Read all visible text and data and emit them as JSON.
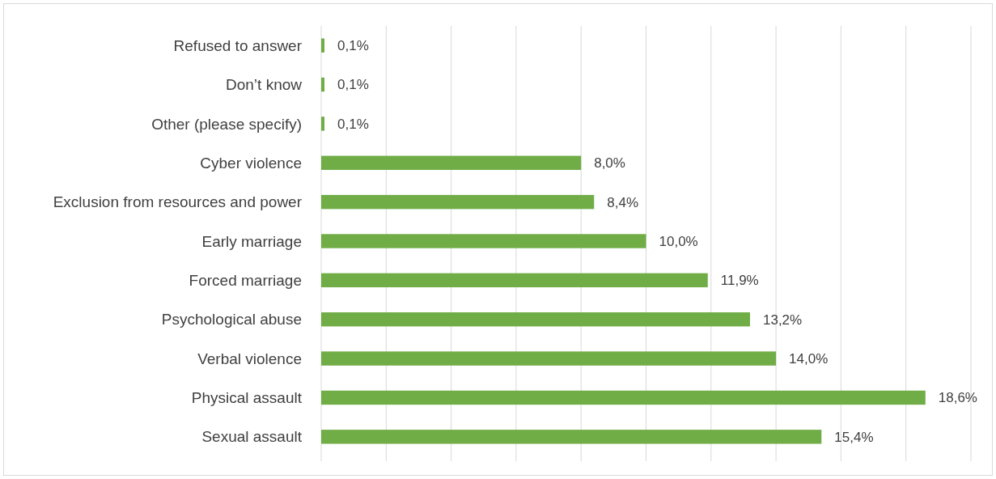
{
  "chart_data": {
    "type": "bar",
    "orientation": "horizontal",
    "categories": [
      "Refused to answer",
      "Don’t know",
      "Other (please specify)",
      "Cyber violence",
      "Exclusion from resources and power",
      "Early marriage",
      "Forced marriage",
      "Psychological abuse",
      "Verbal violence",
      "Physical assault",
      "Sexual assault"
    ],
    "values": [
      0.1,
      0.1,
      0.1,
      8.0,
      8.4,
      10.0,
      11.9,
      13.2,
      14.0,
      18.6,
      15.4
    ],
    "value_labels": [
      "0,1%",
      "0,1%",
      "0,1%",
      "8,0%",
      "8,4%",
      "10,0%",
      "11,9%",
      "13,2%",
      "14,0%",
      "18,6%",
      "15,4%"
    ],
    "color": "#70ad47",
    "xlim": [
      0,
      20
    ],
    "xticks": [
      {
        "value": 0,
        "label": null
      },
      {
        "value": 2,
        "label": null
      },
      {
        "value": 4,
        "label": null
      },
      {
        "value": 6,
        "label": null
      },
      {
        "value": 8,
        "label": null
      },
      {
        "value": 10,
        "label": null
      },
      {
        "value": 12,
        "label": null
      },
      {
        "value": 14,
        "label": null
      },
      {
        "value": 16,
        "label": null
      },
      {
        "value": 18,
        "label": null
      },
      {
        "value": 20,
        "label": null
      }
    ],
    "tick_labels": "y",
    "grid": "x"
  }
}
